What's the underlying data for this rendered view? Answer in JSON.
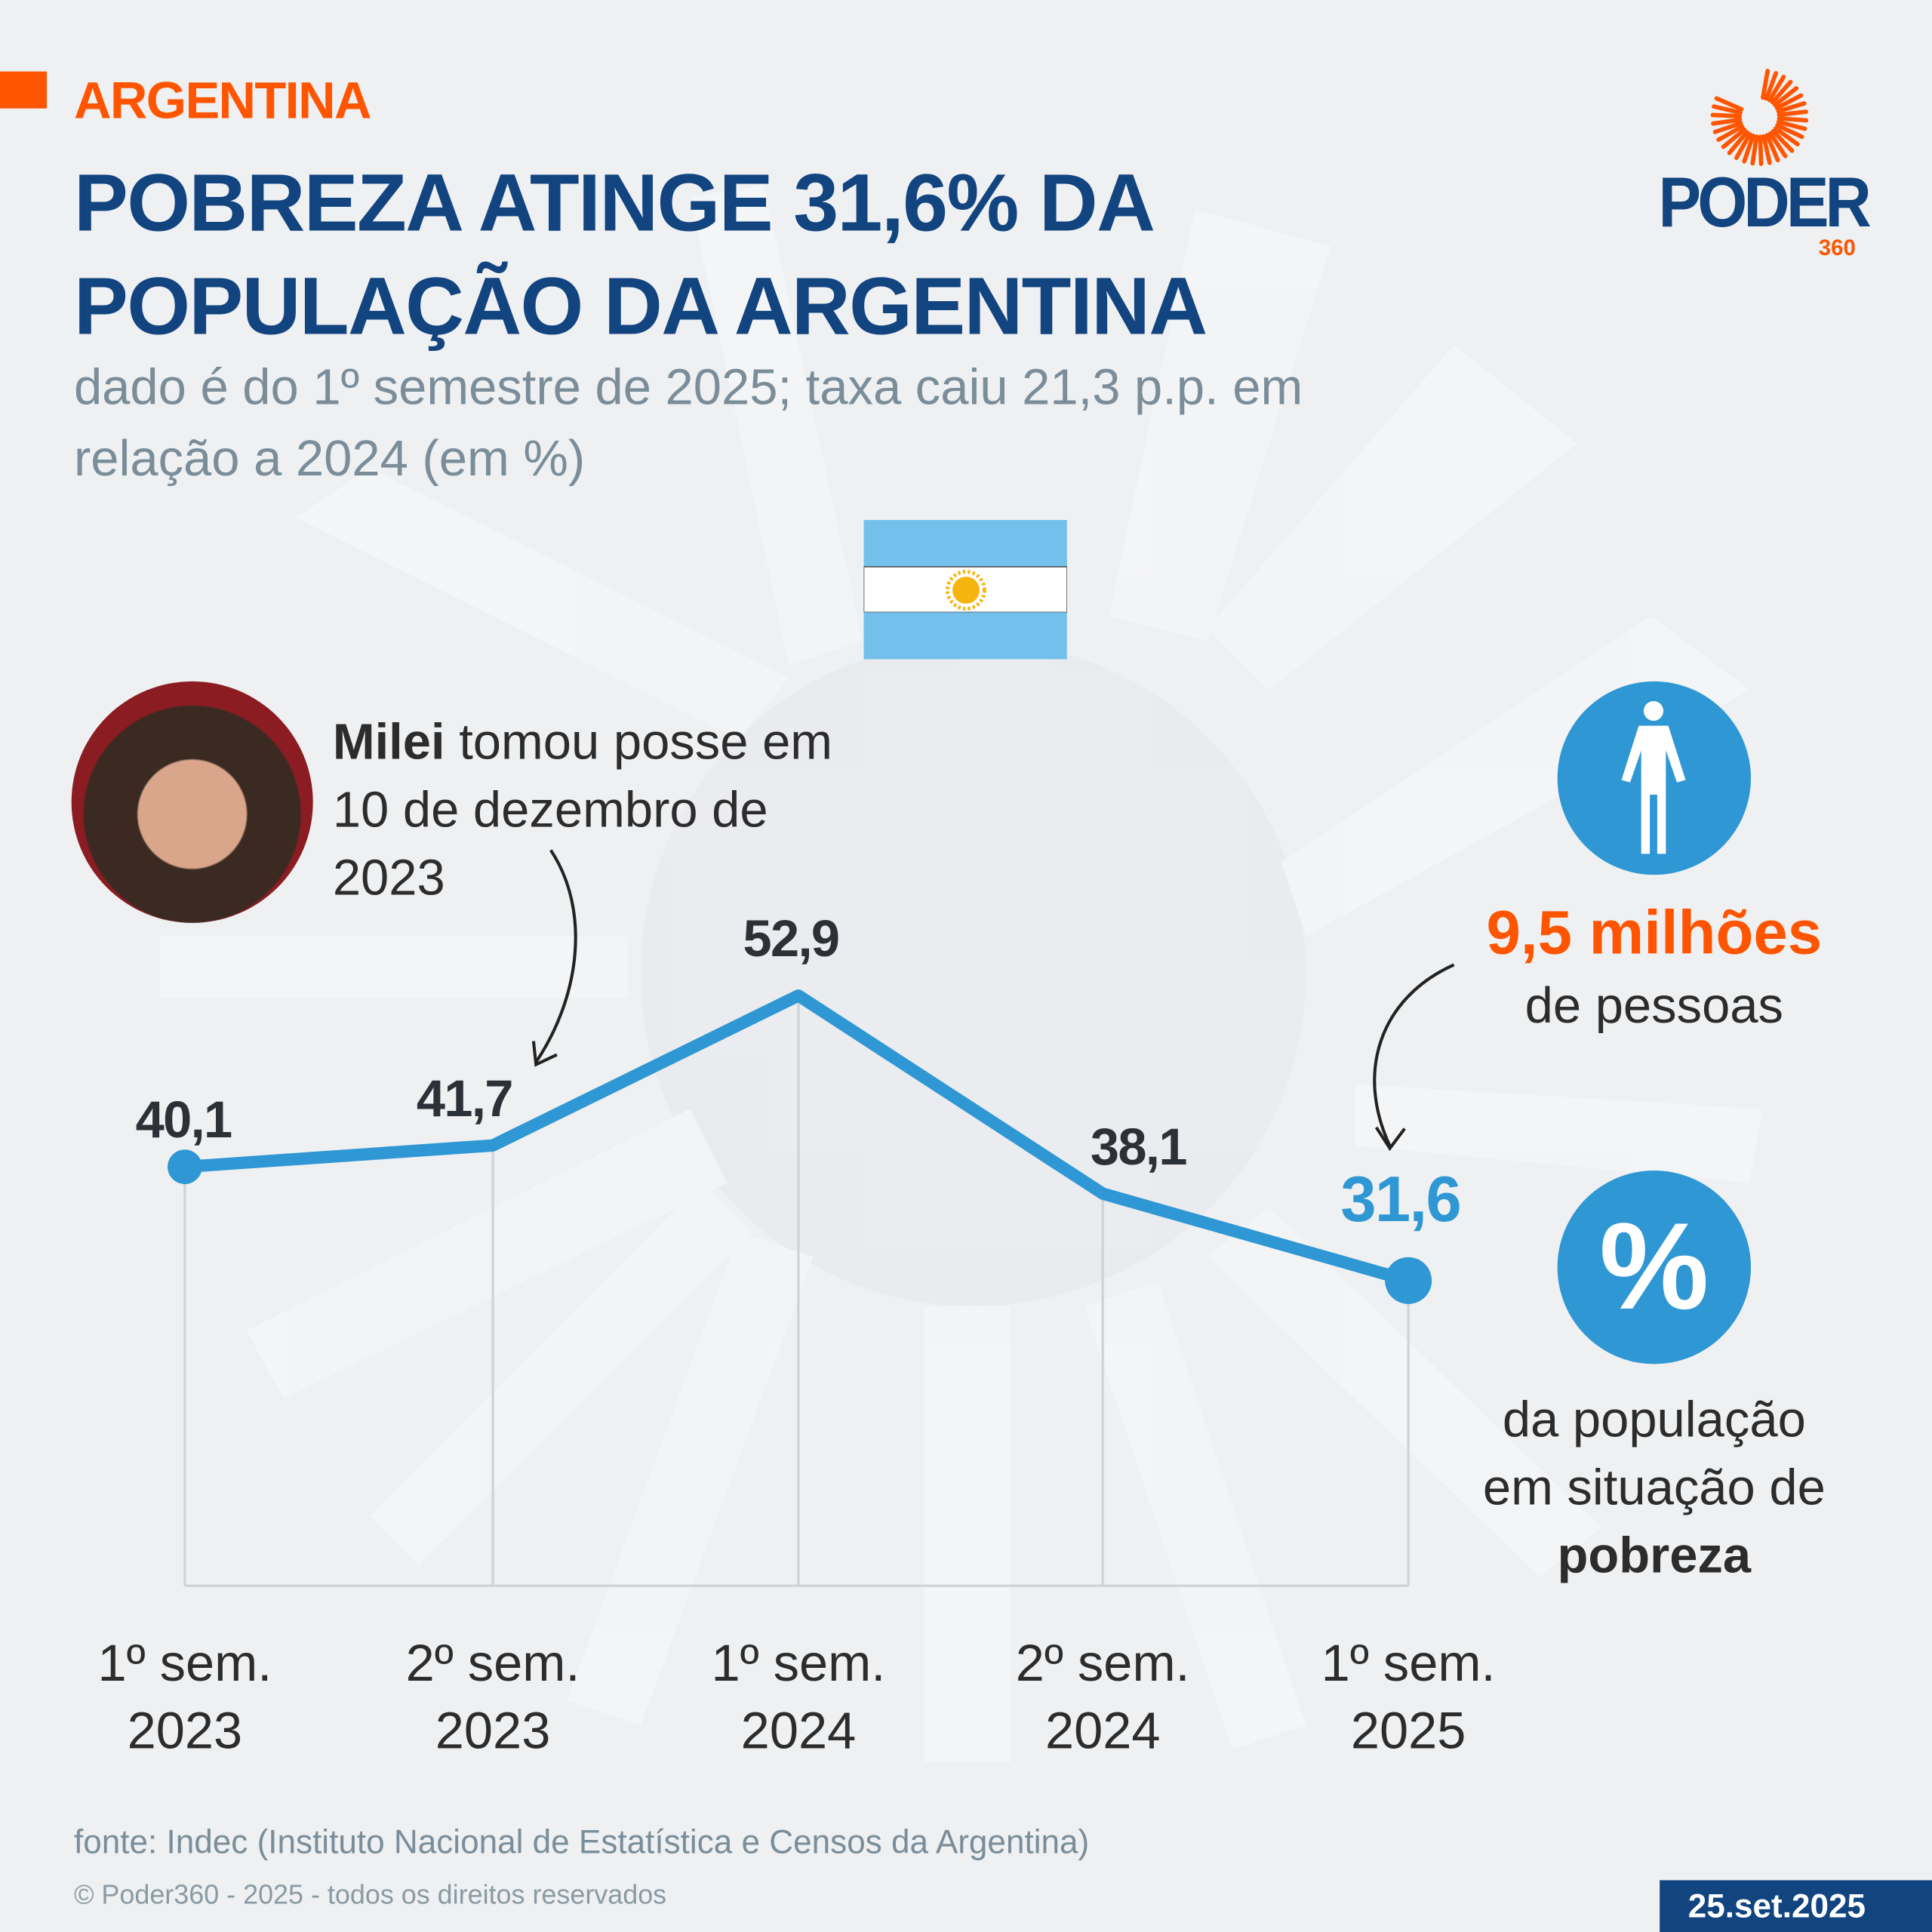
{
  "header": {
    "section": "ARGENTINA",
    "title": "POBREZA ATINGE 31,6% DA POPULAÇÃO DA ARGENTINA",
    "subtitle": "dado é do 1º semestre de 2025; taxa caiu 21,3 p.p. em relação a 2024 (em %)"
  },
  "logo": {
    "word": "PODER",
    "number": "360"
  },
  "annotation": {
    "bold": "Milei",
    "text": " tomou posse em 10 de dezembro de 2023"
  },
  "side": {
    "people_value": "9,5 milhões",
    "people_label": "de pessoas",
    "percent_symbol": "%",
    "pop_line1": "da população",
    "pop_line2": "em situação de",
    "pop_bold": "pobreza"
  },
  "footer": {
    "source": "fonte: Indec (Instituto Nacional de Estatística e Censos da Argentina)",
    "copyright": "© Poder360 - 2025 - todos os direitos reservados",
    "date": "25.set.2025"
  },
  "colors": {
    "accent": "#ff5500",
    "navy": "#124480",
    "line": "#2e97d4"
  },
  "chart_data": {
    "type": "line",
    "categories": [
      "1º sem. 2023",
      "2º sem. 2023",
      "1º sem. 2024",
      "2º sem. 2024",
      "1º sem. 2025"
    ],
    "category_lines": [
      [
        "1º sem.",
        "2023"
      ],
      [
        "2º sem.",
        "2023"
      ],
      [
        "1º sem.",
        "2024"
      ],
      [
        "2º sem.",
        "2024"
      ],
      [
        "1º sem.",
        "2025"
      ]
    ],
    "values": [
      40.1,
      41.7,
      52.9,
      38.1,
      31.6
    ],
    "labels": [
      "40,1",
      "41,7",
      "52,9",
      "38,1",
      "31,6"
    ],
    "unit": "%",
    "grid": "vertical drop lines"
  }
}
